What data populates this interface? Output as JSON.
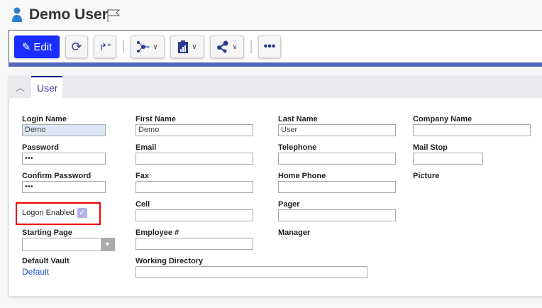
{
  "header": {
    "title": "Demo User",
    "user_icon": "user-icon",
    "flag_icon": "flag-icon"
  },
  "toolbar": {
    "edit_label": "Edit",
    "buttons": [
      "refresh-icon",
      "workflow-icon",
      "network-icon",
      "report-clipboard-icon",
      "share-icon",
      "more-icon"
    ]
  },
  "tab": {
    "label": "User"
  },
  "form": {
    "login_name": {
      "label": "Login Name",
      "value": "Demo"
    },
    "password": {
      "label": "Password",
      "value": "•••"
    },
    "confirm_password": {
      "label": "Confirm Password",
      "value": "•••"
    },
    "logon_enabled": {
      "label": "Logon Enabled",
      "checked": true
    },
    "starting_page": {
      "label": "Starting Page",
      "value": ""
    },
    "default_vault": {
      "label": "Default Vault",
      "value": "Default"
    },
    "first_name": {
      "label": "First Name",
      "value": "Demo"
    },
    "email": {
      "label": "Email",
      "value": ""
    },
    "fax": {
      "label": "Fax",
      "value": ""
    },
    "cell": {
      "label": "Cell",
      "value": ""
    },
    "employee": {
      "label": "Employee #",
      "value": ""
    },
    "working_directory": {
      "label": "Working Directory",
      "value": ""
    },
    "last_name": {
      "label": "Last Name",
      "value": "User"
    },
    "telephone": {
      "label": "Telephone",
      "value": ""
    },
    "home_phone": {
      "label": "Home Phone",
      "value": ""
    },
    "pager": {
      "label": "Pager",
      "value": ""
    },
    "manager": {
      "label": "Manager"
    },
    "company_name": {
      "label": "Company Name",
      "value": ""
    },
    "mail_stop": {
      "label": "Mail Stop",
      "value": ""
    },
    "picture": {
      "label": "Picture"
    }
  },
  "colors": {
    "accent": "#1a2fff",
    "bar": "#5566bb",
    "highlight": "#ee0000"
  }
}
